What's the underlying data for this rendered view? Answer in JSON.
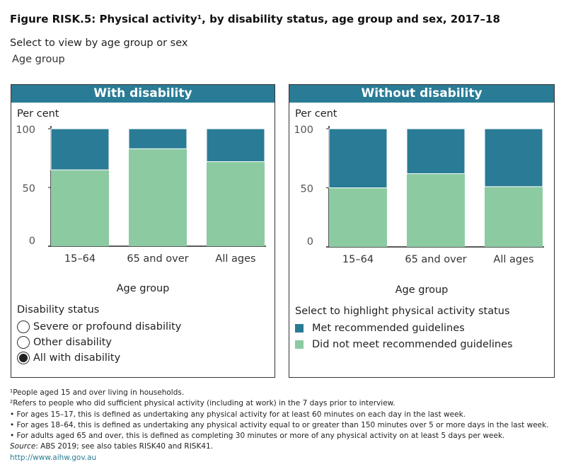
{
  "title": "Figure RISK.5: Physical activity¹, by disability status, age group and sex, 2017–18",
  "selector": {
    "label": "Select to view by age group or sex",
    "value": "Age group"
  },
  "colors": {
    "met": "#2a7b95",
    "not_met": "#8ccba2",
    "header": "#2a7b95"
  },
  "chart_data": [
    {
      "type": "bar",
      "stacked": true,
      "title": "With disability",
      "ylabel": "Per cent",
      "xlabel": "Age group",
      "ylim": [
        0,
        100
      ],
      "yticks": [
        "0",
        "50",
        "100"
      ],
      "categories": [
        "15–64",
        "65 and over",
        "All ages"
      ],
      "series": [
        {
          "name": "Did not meet recommended guidelines",
          "values": [
            65,
            83,
            72
          ]
        },
        {
          "name": "Met recommended guidelines",
          "values": [
            35,
            17,
            28
          ]
        }
      ]
    },
    {
      "type": "bar",
      "stacked": true,
      "title": "Without disability",
      "ylabel": "Per cent",
      "xlabel": "Age group",
      "ylim": [
        0,
        100
      ],
      "yticks": [
        "0",
        "50",
        "100"
      ],
      "categories": [
        "15–64",
        "65 and over",
        "All ages"
      ],
      "series": [
        {
          "name": "Did not meet recommended guidelines",
          "values": [
            50,
            62,
            51
          ]
        },
        {
          "name": "Met recommended guidelines",
          "values": [
            50,
            38,
            49
          ]
        }
      ]
    }
  ],
  "disability_filter": {
    "title": "Disability status",
    "options": [
      {
        "label": "Severe or profound disability",
        "selected": false
      },
      {
        "label": "Other disability",
        "selected": false
      },
      {
        "label": "All with disability",
        "selected": true
      }
    ]
  },
  "highlight_legend": {
    "title": "Select to highlight physical activity status",
    "items": [
      "Met recommended guidelines",
      "Did not meet recommended guidelines"
    ]
  },
  "notes": {
    "n1": "¹People aged 15 and over living in households.",
    "n2": "²Refers to people who did sufficient physical activity (including at work) in the 7 days prior to interview.",
    "n3": "• For ages 15–17, this is defined as undertaking any physical activity for at least 60 minutes on each day in the last week.",
    "n4": "• For ages 18–64, this is defined as undertaking any physical activity equal to or greater than 150 minutes over 5 or more days in the last week.",
    "n5": "• For adults aged 65 and over, this is defined as  completing 30 minutes or more of any physical activity on at least 5 days per week.",
    "source_label": "Source",
    "source": ": ABS 2019; see also tables RISK40 and RISK41.",
    "link": "http://www.aihw.gov.au"
  }
}
